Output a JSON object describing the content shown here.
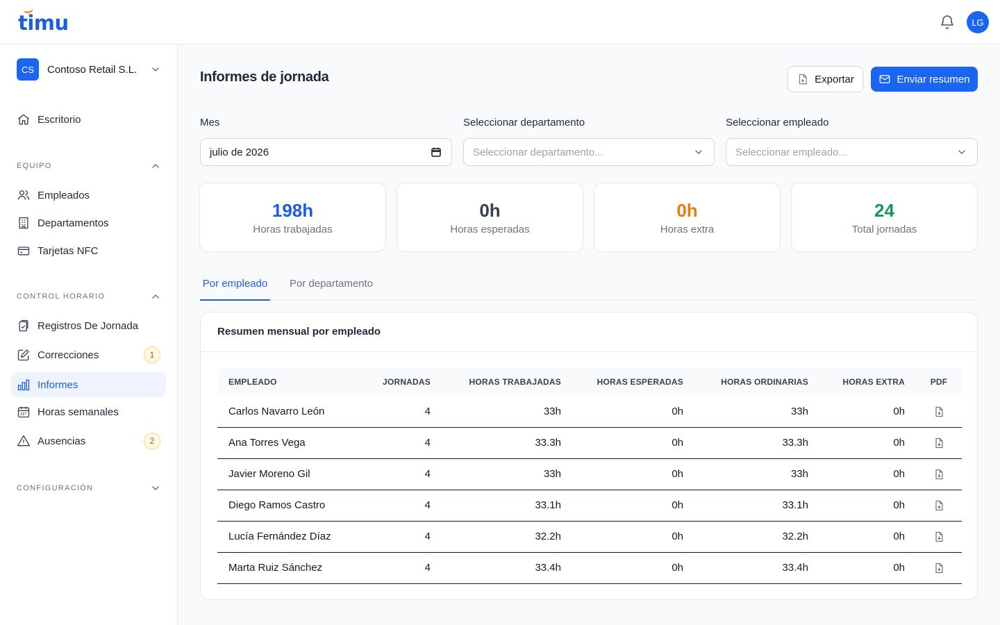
{
  "app": {
    "logo": "timu"
  },
  "header": {
    "avatar_initials": "LG",
    "notifications_icon": "bell-icon"
  },
  "sidebar": {
    "org": {
      "initials": "CS",
      "name": "Contoso Retail S.L."
    },
    "items": [
      {
        "label": "Escritorio",
        "icon": "home-icon"
      },
      {
        "label": "Empleados",
        "icon": "users-icon"
      },
      {
        "label": "Departamentos",
        "icon": "building-icon"
      },
      {
        "label": "Tarjetas NFC",
        "icon": "card-icon"
      },
      {
        "label": "Registros De Jornada",
        "icon": "clipboard-icon"
      },
      {
        "label": "Correcciones",
        "icon": "edit-icon",
        "badge": "1"
      },
      {
        "label": "Informes",
        "icon": "bar-chart-icon",
        "active": true
      },
      {
        "label": "Horas semanales",
        "icon": "calendar-icon"
      },
      {
        "label": "Ausencias",
        "icon": "warning-icon",
        "badge": "2"
      }
    ],
    "sections": {
      "equipo": "EQUIPO",
      "control": "CONTROL HORARIO",
      "config": "CONFIGURACIÓN"
    }
  },
  "main": {
    "title": "Informes de jornada",
    "export_label": "Exportar",
    "send_label": "Enviar resumen",
    "filters": {
      "month_label": "Mes",
      "month_value": "julio de 2026",
      "dept_label": "Seleccionar departamento",
      "dept_placeholder": "Seleccionar departamento...",
      "emp_label": "Seleccionar empleado",
      "emp_placeholder": "Seleccionar empleado..."
    },
    "stats": [
      {
        "value": "198h",
        "label": "Horas trabajadas",
        "color": "#1a5fe0"
      },
      {
        "value": "0h",
        "label": "Horas esperadas",
        "color": "#374151"
      },
      {
        "value": "0h",
        "label": "Horas extra",
        "color": "#e67e0c"
      },
      {
        "value": "24",
        "label": "Total jornadas",
        "color": "#16965a"
      }
    ],
    "tabs": [
      "Por empleado",
      "Por departamento"
    ],
    "table": {
      "title": "Resumen mensual por empleado",
      "headers": [
        "EMPLEADO",
        "JORNADAS",
        "HORAS TRABAJADAS",
        "HORAS ESPERADAS",
        "HORAS ORDINARIAS",
        "HORAS EXTRA",
        "PDF"
      ],
      "rows": [
        [
          "Carlos Navarro León",
          "4",
          "33h",
          "0h",
          "33h",
          "0h"
        ],
        [
          "Ana Torres Vega",
          "4",
          "33.3h",
          "0h",
          "33.3h",
          "0h"
        ],
        [
          "Javier Moreno Gil",
          "4",
          "33h",
          "0h",
          "33h",
          "0h"
        ],
        [
          "Diego Ramos Castro",
          "4",
          "33.1h",
          "0h",
          "33.1h",
          "0h"
        ],
        [
          "Lucía Fernández Díaz",
          "4",
          "32.2h",
          "0h",
          "32.2h",
          "0h"
        ],
        [
          "Marta Ruiz Sánchez",
          "4",
          "33.4h",
          "0h",
          "33.4h",
          "0h"
        ]
      ]
    }
  }
}
